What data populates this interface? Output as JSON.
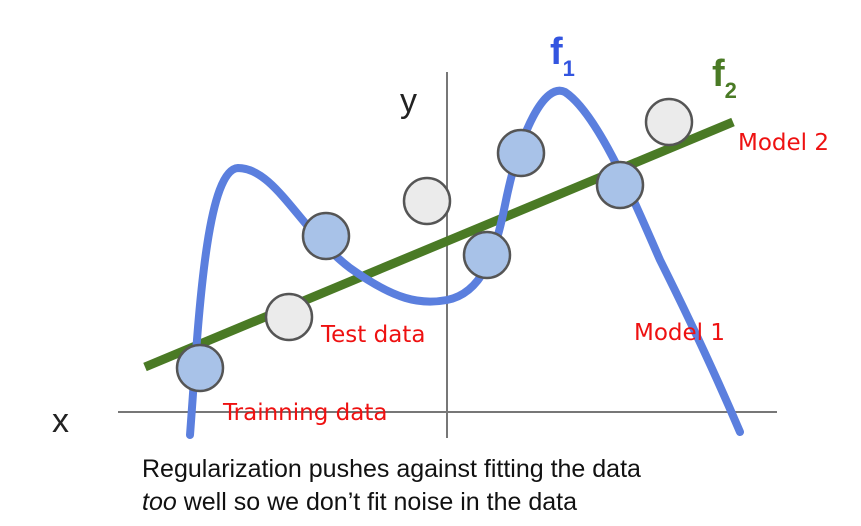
{
  "axes": {
    "x_label": "x",
    "y_label": "y"
  },
  "curves": {
    "f1": {
      "label": "f",
      "subscript": "1",
      "color": "#5b7fde"
    },
    "f2": {
      "label": "f",
      "subscript": "2",
      "color": "#4a7a25"
    }
  },
  "annotations": {
    "model2": "Model 2",
    "model1": "Model 1",
    "test_data": "Test data",
    "training_data": "Trainning data",
    "color": "#ee1111"
  },
  "points": {
    "training_color": "#a8c2e8",
    "test_color": "#ebebeb"
  },
  "caption": {
    "line1": "Regularization pushes against fitting the data",
    "line2_italic": "too",
    "line2_rest": " well so we don’t fit noise in the data"
  }
}
